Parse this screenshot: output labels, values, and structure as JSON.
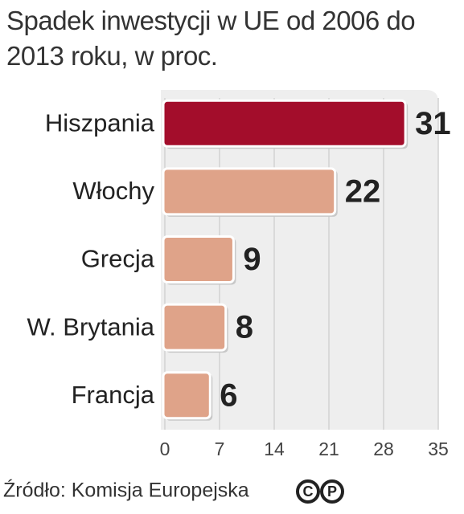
{
  "chart_data": {
    "type": "barh",
    "title": "Spadek inwestycji w UE od 2006 do 2013 roku, w proc.",
    "categories": [
      "Hiszpania",
      "Włochy",
      "Grecja",
      "W. Brytania",
      "Francja"
    ],
    "values": [
      31,
      22,
      9,
      8,
      6
    ],
    "colors": [
      "#a30d2b",
      "#dfa389",
      "#dfa389",
      "#dfa389",
      "#dfa389"
    ],
    "xlim": [
      0,
      35
    ],
    "xticks": [
      0,
      7,
      14,
      21,
      28,
      35
    ],
    "grid": true,
    "source": "Źródło: Komisja Europejska",
    "badge": [
      "C",
      "P"
    ]
  }
}
